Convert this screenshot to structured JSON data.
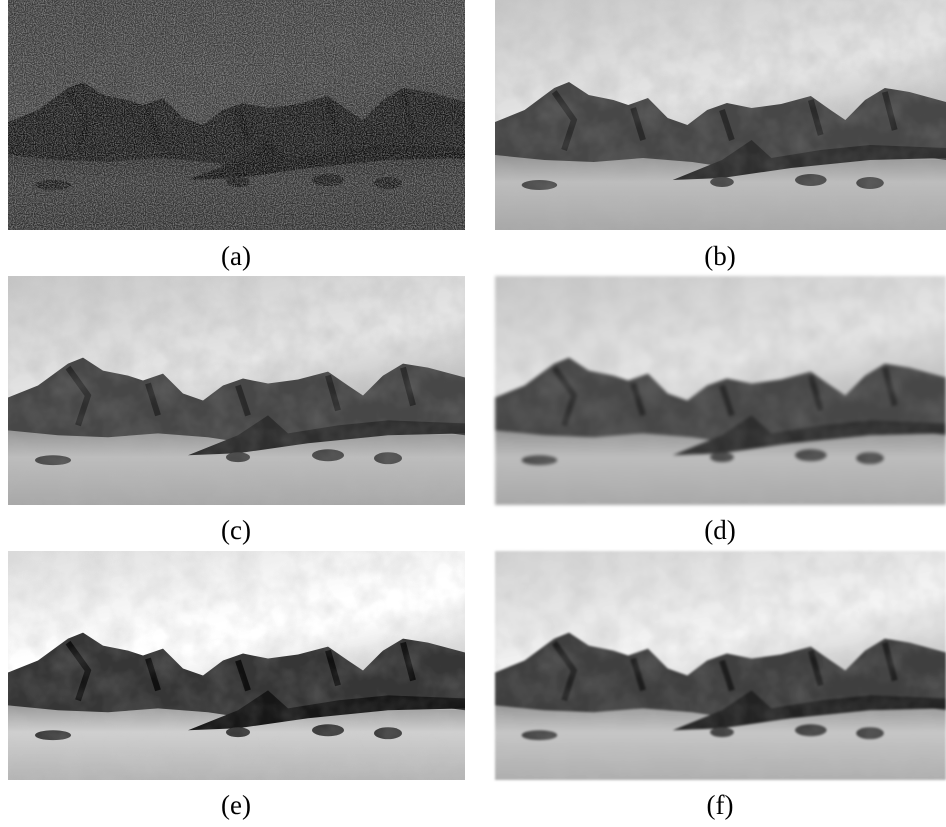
{
  "panels": [
    {
      "caption": "(a)"
    },
    {
      "caption": "(b)"
    },
    {
      "caption": "(c)"
    },
    {
      "caption": "(d)"
    },
    {
      "caption": "(e)"
    },
    {
      "caption": "(f)"
    }
  ]
}
